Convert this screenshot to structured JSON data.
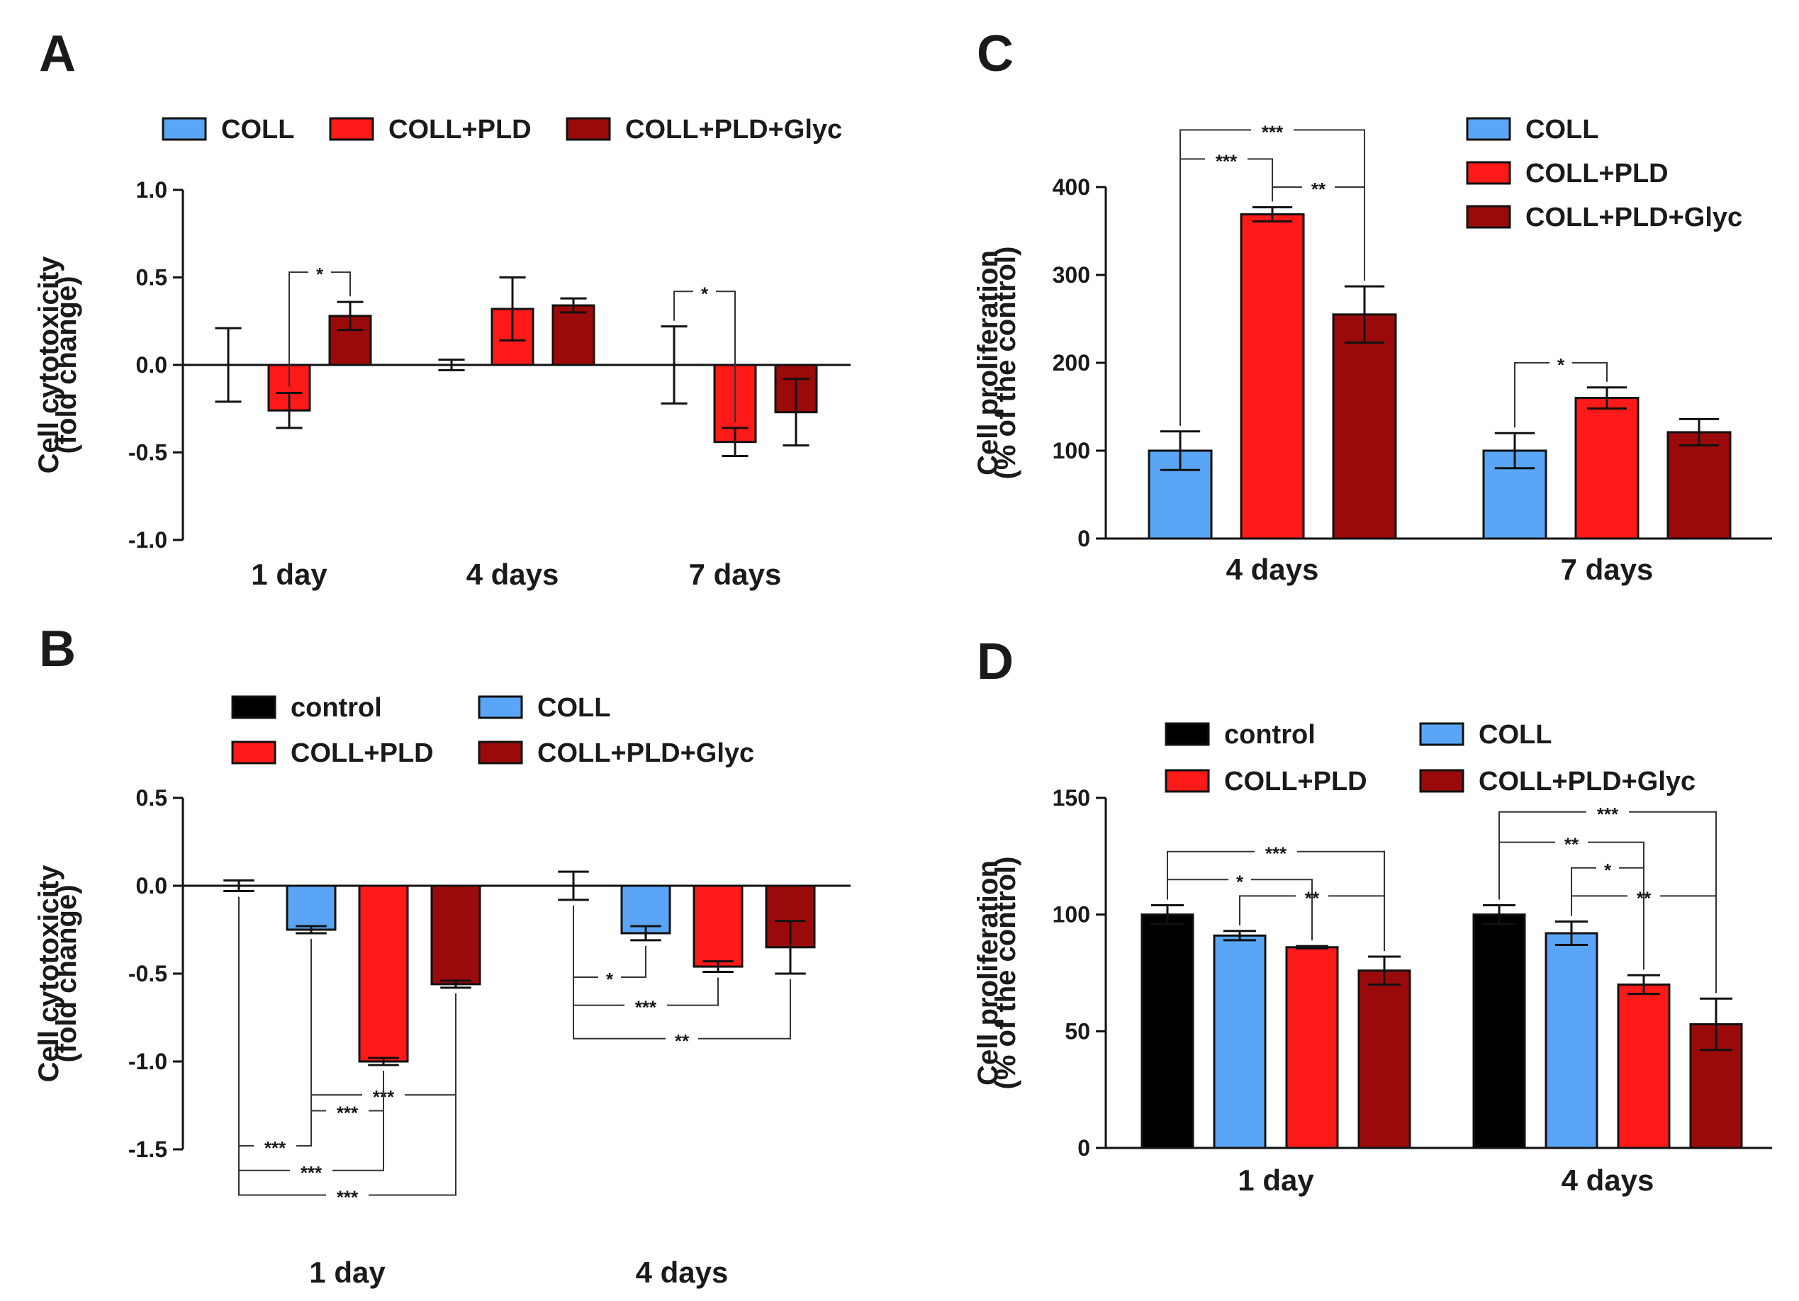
{
  "colors": {
    "control": "#000000",
    "COLL": "#5aa5f5",
    "COLL+PLD": "#ff1a1a",
    "COLL+PLD+Glyc": "#9b0a0a"
  },
  "chart_data": [
    {
      "panel": "A",
      "type": "bar",
      "ylabel": [
        "Cell cytotoxicity",
        "(fold change)"
      ],
      "ylim": [
        -1.0,
        1.0
      ],
      "yticks": [
        1.0,
        0.5,
        0.0,
        -0.5,
        -1.0
      ],
      "ytick_labels": [
        "1.0",
        "0.5",
        "0.0",
        "-0.5",
        "-1.0"
      ],
      "legend": [
        "COLL",
        "COLL+PLD",
        "COLL+PLD+Glyc"
      ],
      "legend_position": "top",
      "categories": [
        "1 day",
        "4 days",
        "7 days"
      ],
      "series": [
        {
          "name": "COLL",
          "values": [
            0.0,
            0.0,
            0.0
          ],
          "errors": [
            0.21,
            0.03,
            0.22
          ]
        },
        {
          "name": "COLL+PLD",
          "values": [
            -0.26,
            0.32,
            -0.44
          ],
          "errors": [
            0.1,
            0.18,
            0.08
          ]
        },
        {
          "name": "COLL+PLD+Glyc",
          "values": [
            0.28,
            0.34,
            -0.27
          ],
          "errors": [
            0.08,
            0.04,
            0.19
          ]
        }
      ],
      "annotations": [
        {
          "label": "*",
          "cat1": 0,
          "s1": 1,
          "cat2": 0,
          "s2": 2,
          "y": 0.53
        },
        {
          "label": "*",
          "cat1": 2,
          "s1": 0,
          "cat2": 2,
          "s2": 1,
          "y": 0.42
        }
      ]
    },
    {
      "panel": "B",
      "type": "bar",
      "ylabel": [
        "Cell cytotoxicity",
        "(fold change)"
      ],
      "ylim": [
        -1.5,
        0.5
      ],
      "yticks": [
        0.5,
        0.0,
        -0.5,
        -1.0,
        -1.5
      ],
      "ytick_labels": [
        "0.5",
        "0.0",
        "-0.5",
        "-1.0",
        "-1.5"
      ],
      "legend": [
        "control",
        "COLL",
        "COLL+PLD",
        "COLL+PLD+Glyc"
      ],
      "legend_position": "top",
      "categories": [
        "1 day",
        "4 days"
      ],
      "series": [
        {
          "name": "control",
          "values": [
            0.0,
            0.0
          ],
          "errors": [
            0.03,
            0.08
          ]
        },
        {
          "name": "COLL",
          "values": [
            -0.25,
            -0.27
          ],
          "errors": [
            0.02,
            0.04
          ]
        },
        {
          "name": "COLL+PLD",
          "values": [
            -1.0,
            -0.46
          ],
          "errors": [
            0.02,
            0.03
          ]
        },
        {
          "name": "COLL+PLD+Glyc",
          "values": [
            -0.56,
            -0.35
          ],
          "errors": [
            0.02,
            0.15
          ]
        }
      ],
      "annotations": [
        {
          "label": "***",
          "cat1": 0,
          "s1": 1,
          "cat2": 0,
          "s2": 3,
          "y": -1.19
        },
        {
          "label": "***",
          "cat1": 0,
          "s1": 1,
          "cat2": 0,
          "s2": 2,
          "y": -1.28
        },
        {
          "label": "***",
          "cat1": 0,
          "s1": 0,
          "cat2": 0,
          "s2": 1,
          "y": -1.48
        },
        {
          "label": "***",
          "cat1": 0,
          "s1": 0,
          "cat2": 0,
          "s2": 2,
          "y": -1.62
        },
        {
          "label": "***",
          "cat1": 0,
          "s1": 0,
          "cat2": 0,
          "s2": 3,
          "y": -1.76
        },
        {
          "label": "*",
          "cat1": 1,
          "s1": 0,
          "cat2": 1,
          "s2": 1,
          "y": -0.52
        },
        {
          "label": "***",
          "cat1": 1,
          "s1": 0,
          "cat2": 1,
          "s2": 2,
          "y": -0.68
        },
        {
          "label": "**",
          "cat1": 1,
          "s1": 0,
          "cat2": 1,
          "s2": 3,
          "y": -0.87
        }
      ]
    },
    {
      "panel": "C",
      "type": "bar",
      "ylabel": [
        "Cell proliferation",
        "(% of the control)"
      ],
      "ylim": [
        0,
        400
      ],
      "yticks": [
        400,
        300,
        200,
        100,
        0
      ],
      "ytick_labels": [
        "400",
        "300",
        "200",
        "100",
        "0"
      ],
      "legend": [
        "COLL",
        "COLL+PLD",
        "COLL+PLD+Glyc"
      ],
      "legend_position": "top-right",
      "categories": [
        "4 days",
        "7 days"
      ],
      "series": [
        {
          "name": "COLL",
          "values": [
            100,
            100
          ],
          "errors": [
            22,
            20
          ]
        },
        {
          "name": "COLL+PLD",
          "values": [
            369,
            160
          ],
          "errors": [
            8,
            12
          ]
        },
        {
          "name": "COLL+PLD+Glyc",
          "values": [
            255,
            121
          ],
          "errors": [
            32,
            15
          ]
        }
      ],
      "annotations": [
        {
          "label": "***",
          "cat1": 0,
          "s1": 0,
          "cat2": 0,
          "s2": 2,
          "y": 465
        },
        {
          "label": "***",
          "cat1": 0,
          "s1": 0,
          "cat2": 0,
          "s2": 1,
          "y": 432
        },
        {
          "label": "**",
          "cat1": 0,
          "s1": 1,
          "cat2": 0,
          "s2": 2,
          "y": 400
        },
        {
          "label": "*",
          "cat1": 1,
          "s1": 0,
          "cat2": 1,
          "s2": 1,
          "y": 200
        }
      ]
    },
    {
      "panel": "D",
      "type": "bar",
      "ylabel": [
        "Cell proliferation",
        "(% of the control)"
      ],
      "ylim": [
        0,
        150
      ],
      "yticks": [
        150,
        100,
        50,
        0
      ],
      "ytick_labels": [
        "150",
        "100",
        "50",
        "0"
      ],
      "legend": [
        "control",
        "COLL",
        "COLL+PLD",
        "COLL+PLD+Glyc"
      ],
      "legend_position": "top",
      "categories": [
        "1 day",
        "4 days"
      ],
      "series": [
        {
          "name": "control",
          "values": [
            100,
            100
          ],
          "errors": [
            4,
            4
          ]
        },
        {
          "name": "COLL",
          "values": [
            91,
            92
          ],
          "errors": [
            2,
            5
          ]
        },
        {
          "name": "COLL+PLD",
          "values": [
            86,
            70
          ],
          "errors": [
            0.5,
            4
          ]
        },
        {
          "name": "COLL+PLD+Glyc",
          "values": [
            76,
            53
          ],
          "errors": [
            6,
            11
          ]
        }
      ],
      "annotations": [
        {
          "label": "***",
          "cat1": 0,
          "s1": 0,
          "cat2": 0,
          "s2": 3,
          "y": 127
        },
        {
          "label": "*",
          "cat1": 0,
          "s1": 0,
          "cat2": 0,
          "s2": 2,
          "y": 115
        },
        {
          "label": "**",
          "cat1": 0,
          "s1": 1,
          "cat2": 0,
          "s2": 3,
          "y": 108
        },
        {
          "label": "***",
          "cat1": 1,
          "s1": 0,
          "cat2": 1,
          "s2": 3,
          "y": 144
        },
        {
          "label": "**",
          "cat1": 1,
          "s1": 0,
          "cat2": 1,
          "s2": 2,
          "y": 131
        },
        {
          "label": "*",
          "cat1": 1,
          "s1": 1,
          "cat2": 1,
          "s2": 2,
          "y": 120
        },
        {
          "label": "**",
          "cat1": 1,
          "s1": 1,
          "cat2": 1,
          "s2": 3,
          "y": 108
        }
      ]
    }
  ]
}
